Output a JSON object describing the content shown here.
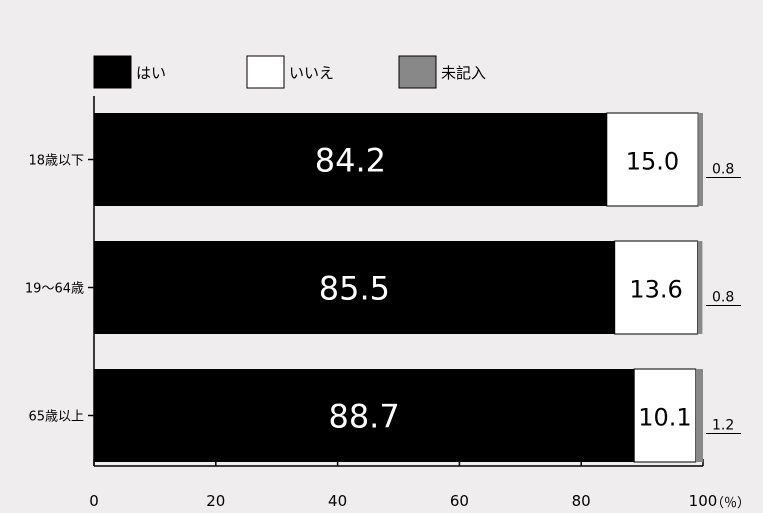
{
  "chart_data": {
    "type": "bar",
    "orientation": "horizontal",
    "stacked": true,
    "categories": [
      "18歳以下",
      "19～64歳",
      "65歳以上"
    ],
    "series": [
      {
        "name": "はい",
        "values": [
          84.2,
          85.5,
          88.7
        ],
        "color": "#000000",
        "label_color": "#ffffff"
      },
      {
        "name": "いいえ",
        "values": [
          15.0,
          13.6,
          10.1
        ],
        "color": "#ffffff",
        "label_color": "#000000"
      },
      {
        "name": "未記入",
        "values": [
          0.8,
          0.8,
          1.2
        ],
        "color": "#888888",
        "label_color": "#000000"
      }
    ],
    "data_labels": [
      [
        "84.2",
        "15.0",
        "0.8"
      ],
      [
        "85.5",
        "13.6",
        "0.8"
      ],
      [
        "88.7",
        "10.1",
        "1.2"
      ]
    ],
    "xlim": [
      0,
      100
    ],
    "x_ticks": [
      0,
      20,
      40,
      60,
      80,
      100
    ],
    "x_tick_labels": [
      "0",
      "20",
      "40",
      "60",
      "80",
      "100"
    ],
    "unit_label": "（％）",
    "legend_position": "top-left",
    "grid": false,
    "title": "",
    "xlabel": "",
    "ylabel": ""
  },
  "colors": {
    "background": "#efeded",
    "axis": "#000000"
  }
}
